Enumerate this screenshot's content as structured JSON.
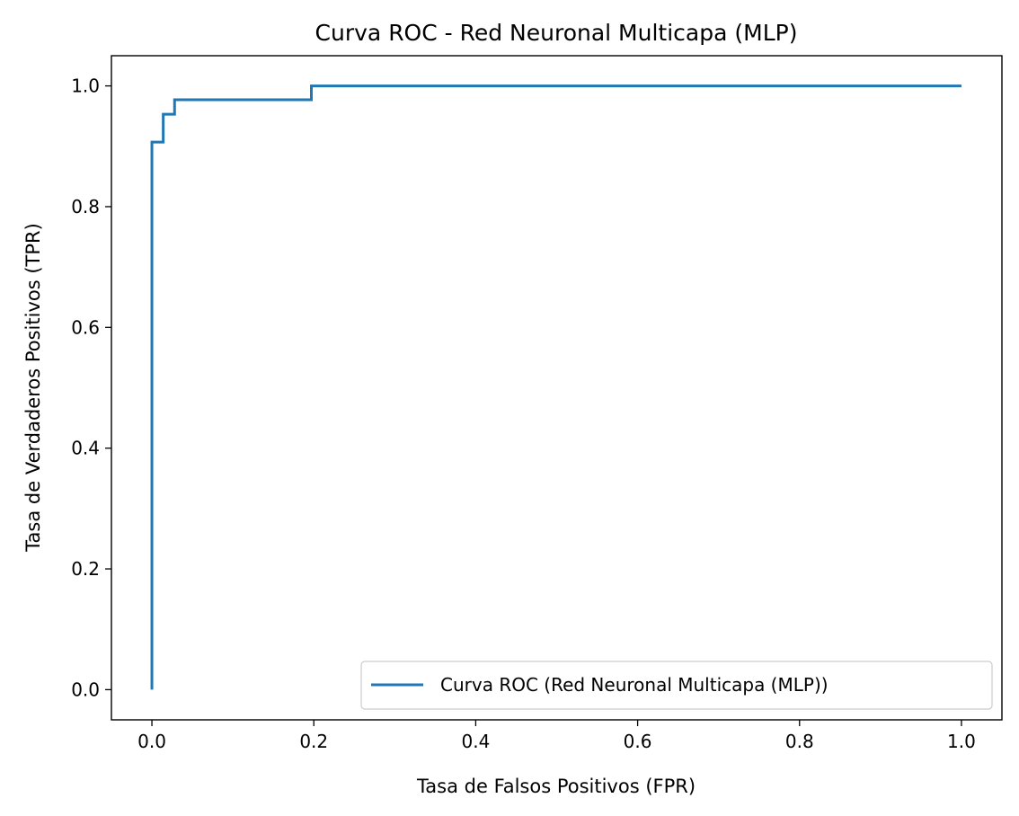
{
  "chart_data": {
    "type": "line",
    "title": "Curva ROC - Red Neuronal Multicapa (MLP)",
    "xlabel": "Tasa de Falsos Positivos (FPR)",
    "ylabel": "Tasa de Verdaderos Positivos (TPR)",
    "xlim": [
      -0.05,
      1.05
    ],
    "ylim": [
      -0.05,
      1.05
    ],
    "xticks": [
      0.0,
      0.2,
      0.4,
      0.6,
      0.8,
      1.0
    ],
    "xtick_labels": [
      "0.0",
      "0.2",
      "0.4",
      "0.6",
      "0.8",
      "1.0"
    ],
    "yticks": [
      0.0,
      0.2,
      0.4,
      0.6,
      0.8,
      1.0
    ],
    "ytick_labels": [
      "0.0",
      "0.2",
      "0.4",
      "0.6",
      "0.8",
      "1.0"
    ],
    "grid": false,
    "legend_position": "lower-right",
    "series": [
      {
        "name": "Curva ROC (Red Neuronal Multicapa (MLP))",
        "color": "#1f77b4",
        "x": [
          0.0,
          0.0,
          0.014,
          0.014,
          0.028,
          0.028,
          0.197,
          0.197,
          1.0
        ],
        "y": [
          0.0,
          0.907,
          0.907,
          0.953,
          0.953,
          0.977,
          0.977,
          1.0,
          1.0
        ]
      }
    ]
  }
}
